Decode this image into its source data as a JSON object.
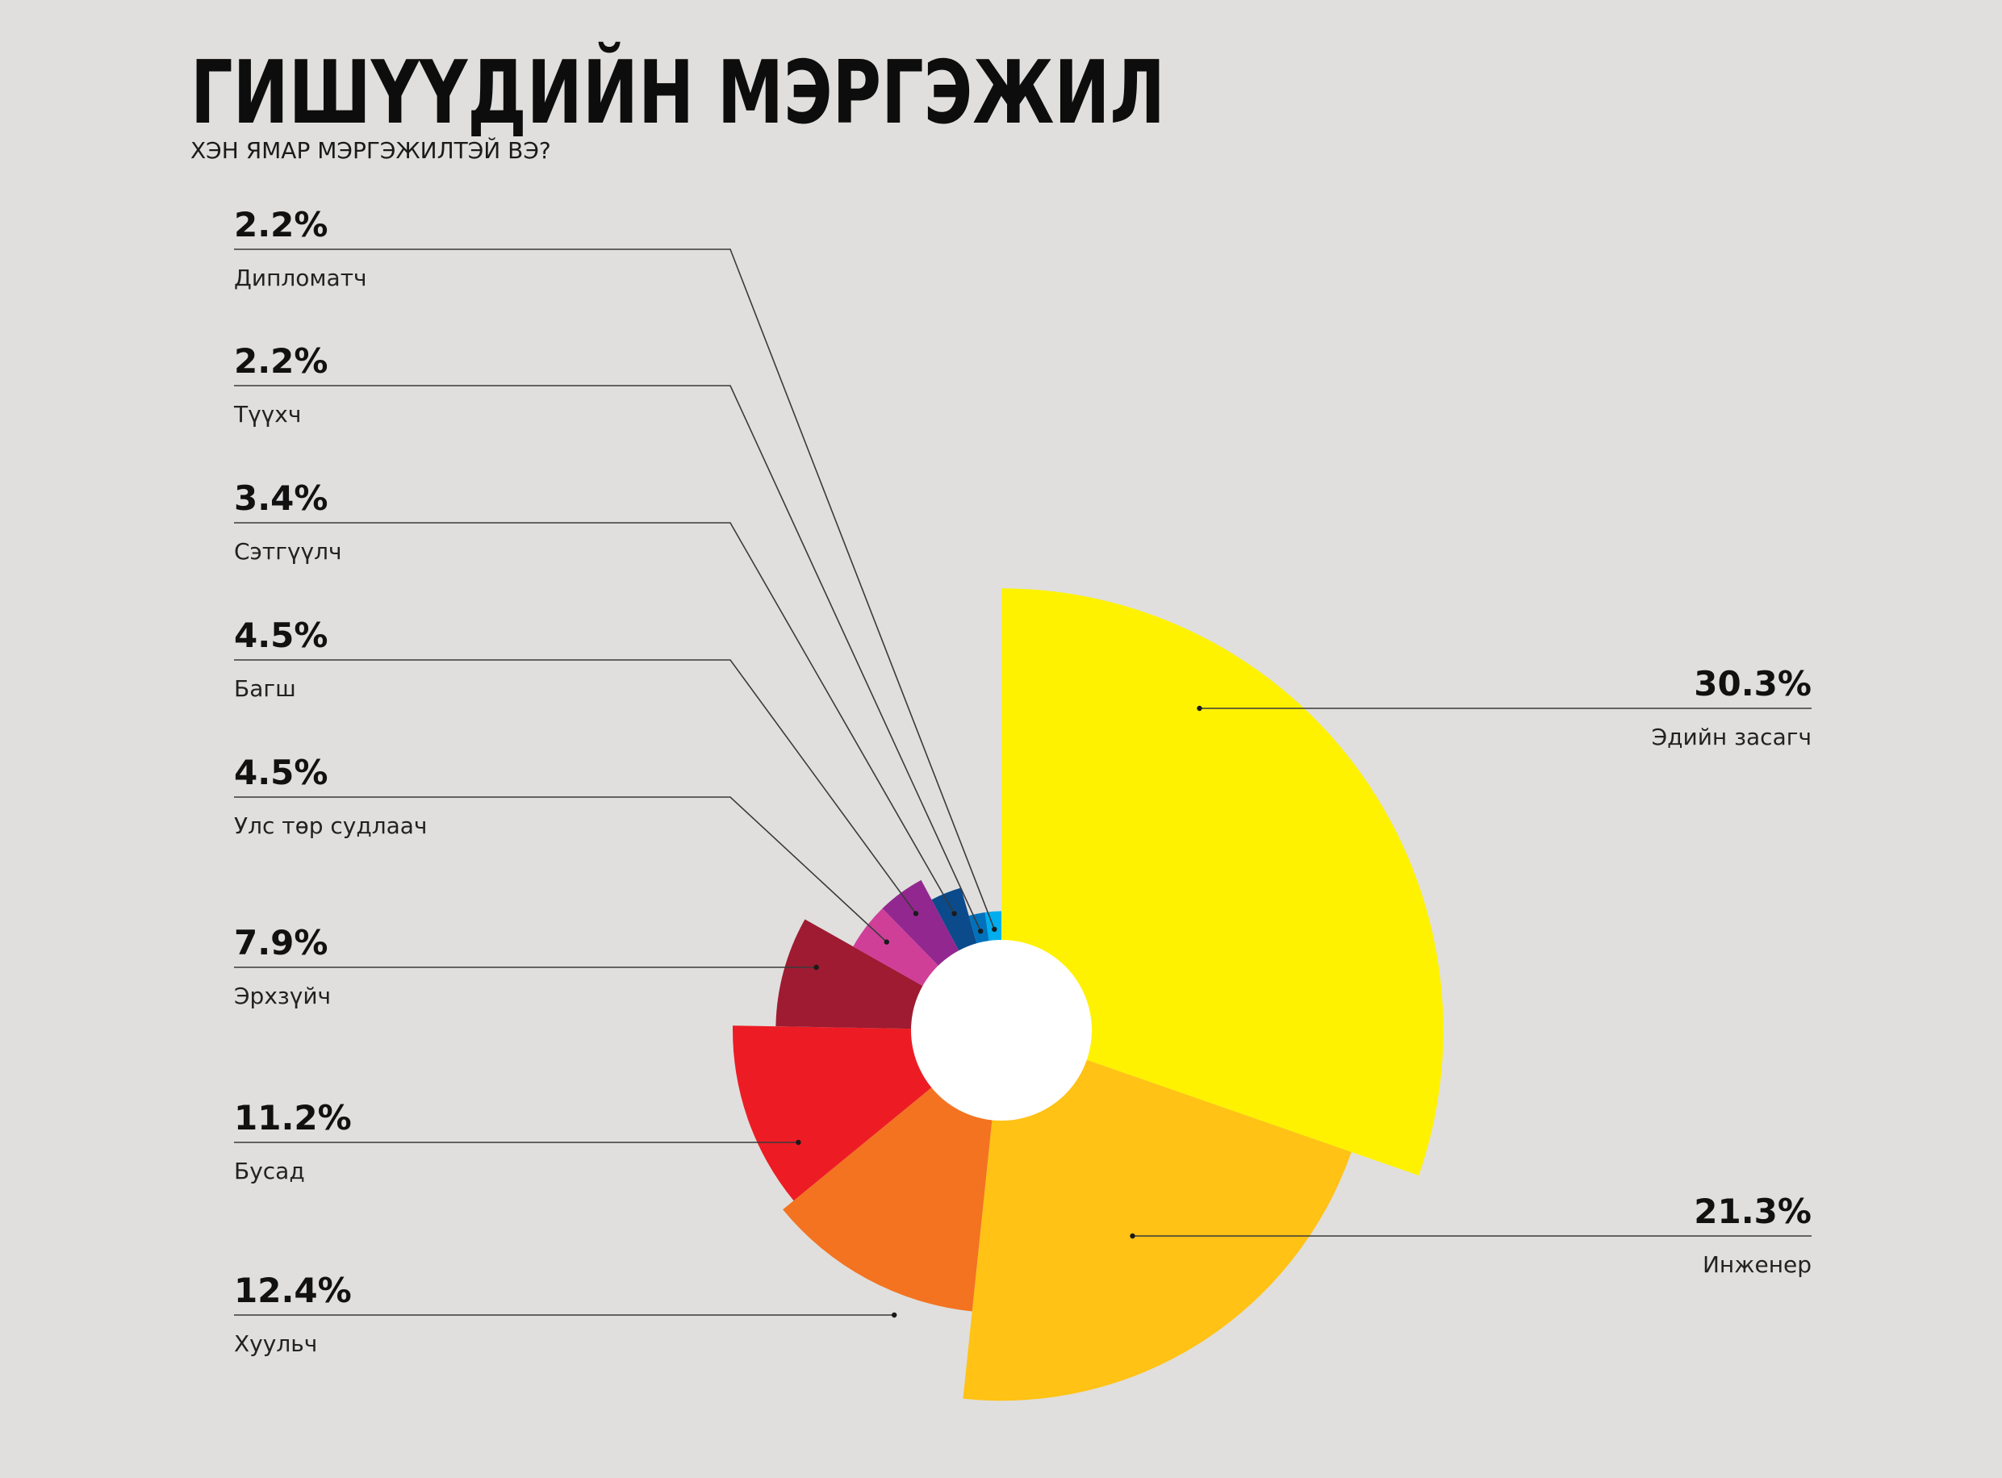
{
  "header": {
    "title": "ГИШҮҮДИЙН МЭРГЭЖИЛ",
    "subtitle": "ХЭН ЯМАР МЭРГЭЖИЛТЭЙ ВЭ?"
  },
  "chart_data": {
    "type": "pie",
    "variant": "polar-area (radius varies with value), donut hole, clockwise from 12 o'clock",
    "categories": [
      "Эдийн засагч",
      "Инженер",
      "Хуульч",
      "Бусад",
      "Эрхзүйч",
      "Улс төр судлаач",
      "Багш",
      "Сэтгүүлч",
      "Түүхч",
      "Дипломатч"
    ],
    "values": [
      30.3,
      21.3,
      12.4,
      11.2,
      7.9,
      4.5,
      4.5,
      3.4,
      2.2,
      2.2
    ],
    "labels": [
      "30.3%",
      "21.3%",
      "12.4%",
      "11.2%",
      "7.9%",
      "4.5%",
      "4.5%",
      "3.4%",
      "2.2%",
      "2.2%"
    ],
    "colors": [
      "#fff200",
      "#ffc215",
      "#f37321",
      "#ed1c24",
      "#9e1b32",
      "#cf3f98",
      "#92278f",
      "#0b4a8b",
      "#0072bc",
      "#00aeef"
    ],
    "legend_placement": "callouts: left side for small slices, right side for the two largest",
    "title": "ГИШҮҮДИЙН МЭРГЭЖИЛ",
    "subtitle": "ХЭН ЯМАР МЭРГЭЖИЛТЭЙ ВЭ?"
  }
}
